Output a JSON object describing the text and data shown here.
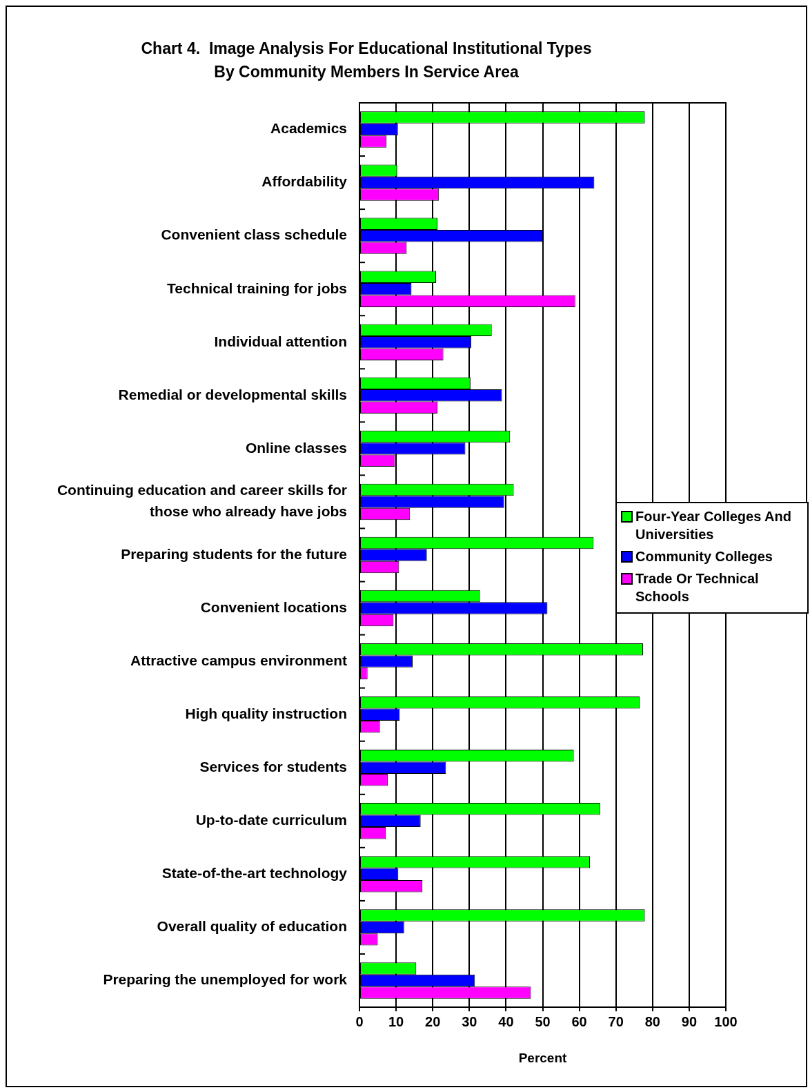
{
  "chart_data": {
    "type": "bar",
    "orientation": "horizontal",
    "title": "Chart 4.  Image Analysis For Educational Institutional Types By Community Members In Service Area",
    "xlabel": "Percent",
    "categories": [
      "Academics",
      "Affordability",
      "Convenient class schedule",
      "Technical training for jobs",
      "Individual attention",
      "Remedial or developmental skills",
      "Online classes",
      "Continuing education and career skills for those who already have jobs",
      "Preparing students for the future",
      "Convenient locations",
      "Attractive campus environment",
      "High quality instruction",
      "Services for students",
      "Up-to-date curriculum",
      "State-of-the-art technology",
      "Overall quality of education",
      "Preparing the unemployed for work"
    ],
    "series": [
      {
        "name": "Four-Year Colleges And Universities",
        "color": "#00ff00",
        "values": [
          77.9,
          10.3,
          21.3,
          20.9,
          36.1,
          30.3,
          41.1,
          42.1,
          63.9,
          32.9,
          77.4,
          76.5,
          58.5,
          65.7,
          62.9,
          77.9,
          15.5
        ]
      },
      {
        "name": "Community Colleges",
        "color": "#0000ff",
        "values": [
          10.5,
          64.1,
          50.1,
          14.2,
          30.5,
          38.9,
          28.9,
          39.5,
          18.4,
          51.3,
          14.5,
          11.0,
          23.6,
          16.7,
          10.6,
          12.2,
          31.5
        ]
      },
      {
        "name": "Trade Or Technical Schools",
        "color": "#ff00ff",
        "values": [
          7.4,
          21.7,
          12.9,
          58.9,
          22.9,
          21.3,
          9.7,
          13.8,
          10.8,
          9.3,
          2.2,
          5.6,
          7.7,
          7.2,
          17.2,
          5.0,
          46.8
        ]
      }
    ],
    "xlim": [
      0,
      100
    ],
    "xticks": [
      0,
      10,
      20,
      30,
      40,
      50,
      60,
      70,
      80,
      90,
      100
    ],
    "grid": "x",
    "legend": "right"
  }
}
